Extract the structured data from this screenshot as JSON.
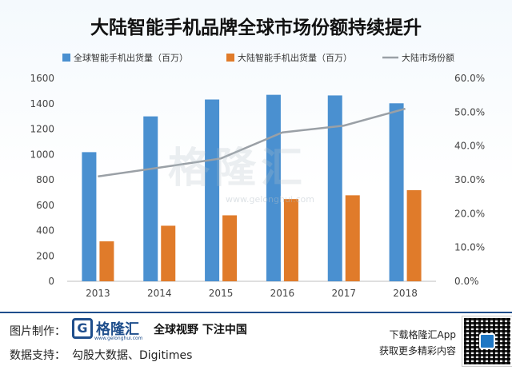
{
  "chart_data": {
    "type": "bar",
    "title": "大陆智能手机品牌全球市场份额持续提升",
    "categories": [
      "2013",
      "2014",
      "2015",
      "2016",
      "2017",
      "2018"
    ],
    "series": [
      {
        "name": "全球智能手机出货量（百万）",
        "kind": "bar",
        "axis": "left",
        "color": "#4a90d0",
        "values": [
          1018,
          1300,
          1433,
          1470,
          1465,
          1403
        ]
      },
      {
        "name": "大陆智能手机出货量（百万）",
        "kind": "bar",
        "axis": "left",
        "color": "#e07b2a",
        "values": [
          315,
          438,
          520,
          648,
          678,
          718
        ]
      },
      {
        "name": "大陆市场份额",
        "kind": "line",
        "axis": "right",
        "color": "#9aa0a6",
        "values": [
          0.31,
          0.336,
          0.363,
          0.44,
          0.46,
          0.51
        ]
      }
    ],
    "ylim": [
      0,
      1600
    ],
    "y_ticks": [
      "0",
      "200",
      "400",
      "600",
      "800",
      "1000",
      "1200",
      "1400",
      "1600"
    ],
    "y2lim": [
      0,
      0.6
    ],
    "y2_ticks": [
      "0.0%",
      "10.0%",
      "20.0%",
      "30.0%",
      "40.0%",
      "50.0%",
      "60.0%"
    ],
    "legend": "top",
    "grid": false
  },
  "watermark": {
    "text": "格隆汇",
    "sub": "www.gelonghui.com"
  },
  "footer": {
    "made_by_label": "图片制作：",
    "data_label": "数据支持：",
    "data_source": "勾股大数据、Digitimes",
    "logo_text": "格隆汇",
    "logo_letter": "G",
    "logo_url": "www.gelonghui.com",
    "slogan": "全球视野 下注中国",
    "app_line1": "下载格隆汇App",
    "app_line2": "获取更多精彩内容"
  }
}
